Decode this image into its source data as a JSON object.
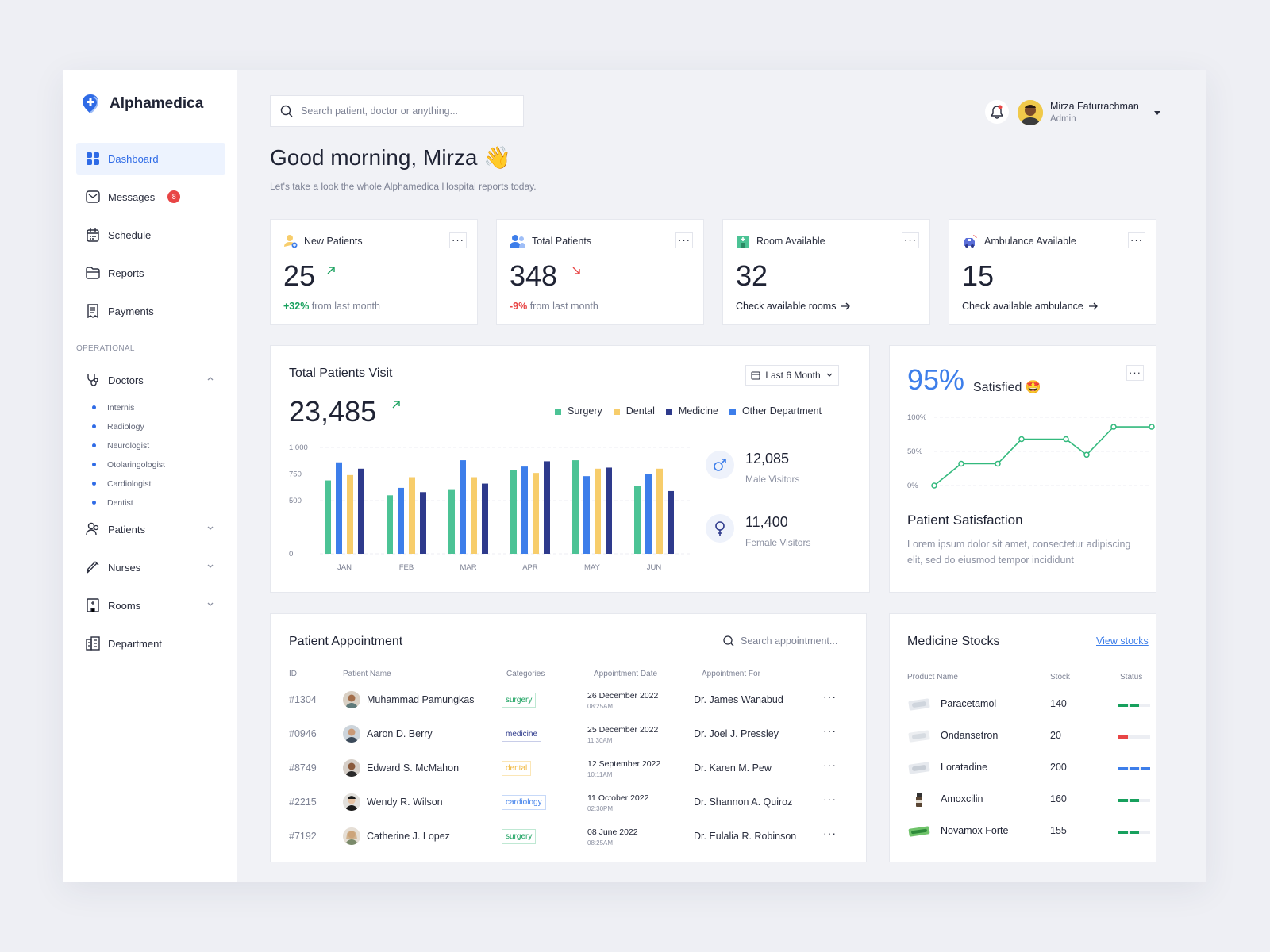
{
  "app": {
    "name": "Alphamedica"
  },
  "nav": {
    "dashboard": "Dashboard",
    "messages": "Messages",
    "messages_badge": "8",
    "schedule": "Schedule",
    "reports": "Reports",
    "payments": "Payments",
    "section": "OPERATIONAL",
    "doctors": "Doctors",
    "doctor_subs": [
      "Internis",
      "Radiology",
      "Neurologist",
      "Otolaringologist",
      "Cardiologist",
      "Dentist"
    ],
    "patients": "Patients",
    "nurses": "Nurses",
    "rooms": "Rooms",
    "department": "Department"
  },
  "header": {
    "search_placeholder": "Search patient, doctor or anything...",
    "user_name": "Mirza Faturrachman",
    "user_role": "Admin",
    "greeting": "Good morning, Mirza 👋",
    "subtitle": "Let's take a look the whole Alphamedica Hospital reports today."
  },
  "stats": [
    {
      "label": "New Patients",
      "value": "25",
      "change": "+32%",
      "change_text": " from last month",
      "trend": "up"
    },
    {
      "label": "Total Patients",
      "value": "348",
      "change": "-9%",
      "change_text": " from last month",
      "trend": "down"
    },
    {
      "label": "Room Available",
      "value": "32",
      "link": "Check available rooms"
    },
    {
      "label": "Ambulance Available",
      "value": "15",
      "link": "Check available ambulance"
    }
  ],
  "visit": {
    "title": "Total Patients Visit",
    "total": "23,485",
    "range": "Last 6 Month",
    "male_value": "12,085",
    "male_label": "Male Visitors",
    "female_value": "11,400",
    "female_label": "Female Visitors"
  },
  "chart_data": [
    {
      "type": "bar",
      "categories": [
        "JAN",
        "FEB",
        "MAR",
        "APR",
        "MAY",
        "JUN"
      ],
      "series": [
        {
          "name": "Surgery",
          "color": "#4cc395",
          "values": [
            690,
            550,
            600,
            790,
            880,
            640
          ]
        },
        {
          "name": "Dental",
          "color": "#f7cd6b",
          "values": [
            740,
            720,
            720,
            760,
            800,
            800
          ]
        },
        {
          "name": "Medicine",
          "color": "#2e3a8c",
          "values": [
            800,
            580,
            660,
            870,
            810,
            590
          ]
        },
        {
          "name": "Other Department",
          "color": "#3d7eea",
          "values": [
            860,
            620,
            880,
            820,
            730,
            750
          ]
        }
      ],
      "ylim": [
        0,
        1000
      ],
      "yticks": [
        "0",
        "500",
        "750",
        "1,000"
      ],
      "legend": "top-right",
      "grid": true
    },
    {
      "type": "line",
      "title": "Patient Satisfaction",
      "headline": "95%",
      "headline_label": "Satisfied 🤩",
      "ylim": [
        0,
        100
      ],
      "yticks": [
        "0%",
        "50%",
        "100%"
      ],
      "values": [
        0,
        32,
        32,
        68,
        68,
        45,
        86,
        86
      ],
      "color": "#33b97d"
    }
  ],
  "satisfaction": {
    "title": "Patient Satisfaction",
    "desc": "Lorem ipsum dolor sit amet, consectetur adipiscing elit, sed do eiusmod tempor incididunt"
  },
  "appointments": {
    "title": "Patient Appointment",
    "search_placeholder": "Search appointment...",
    "columns": [
      "ID",
      "Patient Name",
      "Categories",
      "Appointment Date",
      "Appointment For"
    ],
    "rows": [
      {
        "id": "#1304",
        "name": "Muhammad Pamungkas",
        "category": "surgery",
        "date": "26 December 2022",
        "time": "08:25AM",
        "doctor": "Dr. James Wanabud"
      },
      {
        "id": "#0946",
        "name": "Aaron D. Berry",
        "category": "medicine",
        "date": "25 December 2022",
        "time": "11:30AM",
        "doctor": "Dr. Joel J. Pressley"
      },
      {
        "id": "#8749",
        "name": "Edward S. McMahon",
        "category": "dental",
        "date": "12 September 2022",
        "time": "10:11AM",
        "doctor": "Dr. Karen M. Pew"
      },
      {
        "id": "#2215",
        "name": "Wendy R. Wilson",
        "category": "cardiology",
        "date": "11 October 2022",
        "time": "02:30PM",
        "doctor": "Dr. Shannon A. Quiroz"
      },
      {
        "id": "#7192",
        "name": "Catherine J. Lopez",
        "category": "surgery",
        "date": "08 June 2022",
        "time": "08:25AM",
        "doctor": "Dr. Eulalia R. Robinson"
      }
    ]
  },
  "medicine": {
    "title": "Medicine Stocks",
    "view_link": "View stocks",
    "columns": [
      "Product Name",
      "Stock",
      "Status"
    ],
    "rows": [
      {
        "name": "Paracetamol",
        "stock": "140",
        "level": 0.66,
        "color": "#17a05d"
      },
      {
        "name": "Ondansetron",
        "stock": "20",
        "level": 0.33,
        "color": "#e84545"
      },
      {
        "name": "Loratadine",
        "stock": "200",
        "level": 1.0,
        "color": "#3d7eea"
      },
      {
        "name": "Amoxcilin",
        "stock": "160",
        "level": 0.66,
        "color": "#17a05d"
      },
      {
        "name": "Novamox Forte",
        "stock": "155",
        "level": 0.66,
        "color": "#17a05d"
      }
    ]
  }
}
